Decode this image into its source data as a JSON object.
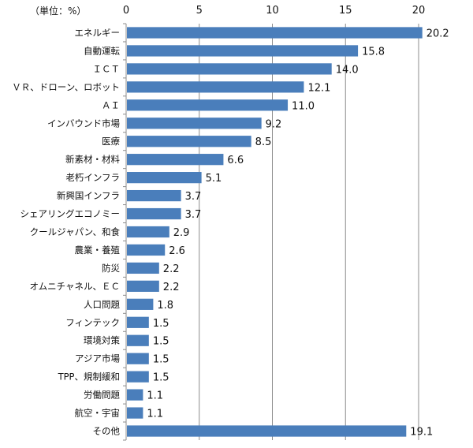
{
  "chart_data": {
    "type": "bar",
    "orientation": "horizontal",
    "unit_label": "（単位：%）",
    "title": "",
    "xlabel": "",
    "ylabel": "",
    "xlim": [
      0,
      20
    ],
    "xticks": [
      0,
      5,
      10,
      15,
      20
    ],
    "axis_position": "top",
    "grid": true,
    "bar_color": "#4a7ebb",
    "categories": [
      "エネルギー",
      "自動運転",
      "ＩＣＴ",
      "ＶＲ、ドローン、ロボット",
      "ＡＩ",
      "インバウンド市場",
      "医療",
      "新素材・材料",
      "老朽インフラ",
      "新興国インフラ",
      "シェアリングエコノミー",
      "クールジャパン、和食",
      "農業・養殖",
      "防災",
      "オムニチャネル、ＥＣ",
      "人口問題",
      "フィンテック",
      "環境対策",
      "アジア市場",
      "TPP、規制緩和",
      "労働問題",
      "航空・宇宙",
      "その他"
    ],
    "values": [
      20.2,
      15.8,
      14.0,
      12.1,
      11.0,
      9.2,
      8.5,
      6.6,
      5.1,
      3.7,
      3.7,
      2.9,
      2.6,
      2.2,
      2.2,
      1.8,
      1.5,
      1.5,
      1.5,
      1.5,
      1.1,
      1.1,
      19.1
    ],
    "data_labels": [
      "20.2",
      "15.8",
      "14.0",
      "12.1",
      "11.0",
      "9.2",
      "8.5",
      "6.6",
      "5.1",
      "3.7",
      "3.7",
      "2.9",
      "2.6",
      "2.2",
      "2.2",
      "1.8",
      "1.5",
      "1.5",
      "1.5",
      "1.5",
      "1.1",
      "1.1",
      "19.1"
    ]
  }
}
